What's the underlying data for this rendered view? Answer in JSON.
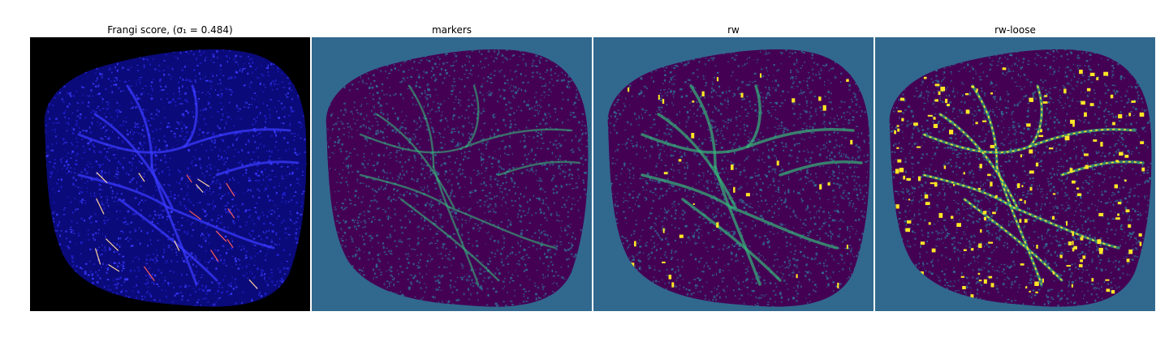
{
  "figure": {
    "panels": [
      {
        "title": "Frangi score, (σ₁ = 0.484)",
        "image": "frangi-vesselness-map",
        "background_color": "#000000",
        "colors": [
          "#0a0a7a",
          "#1f1fd0",
          "#3a3aff",
          "#ff5a5a",
          "#ffd2a0"
        ]
      },
      {
        "title": "markers",
        "image": "marker-label-map",
        "background_color": "#31688e",
        "colors": [
          "#440154",
          "#31688e",
          "#35b779",
          "#2a9d8f"
        ]
      },
      {
        "title": "rw",
        "image": "random-walker-segmentation",
        "background_color": "#31688e",
        "colors": [
          "#440154",
          "#31688e",
          "#35b779",
          "#fde725"
        ]
      },
      {
        "title": "rw-loose",
        "image": "random-walker-loose-segmentation",
        "background_color": "#31688e",
        "colors": [
          "#440154",
          "#31688e",
          "#35b779",
          "#fde725"
        ]
      }
    ]
  }
}
